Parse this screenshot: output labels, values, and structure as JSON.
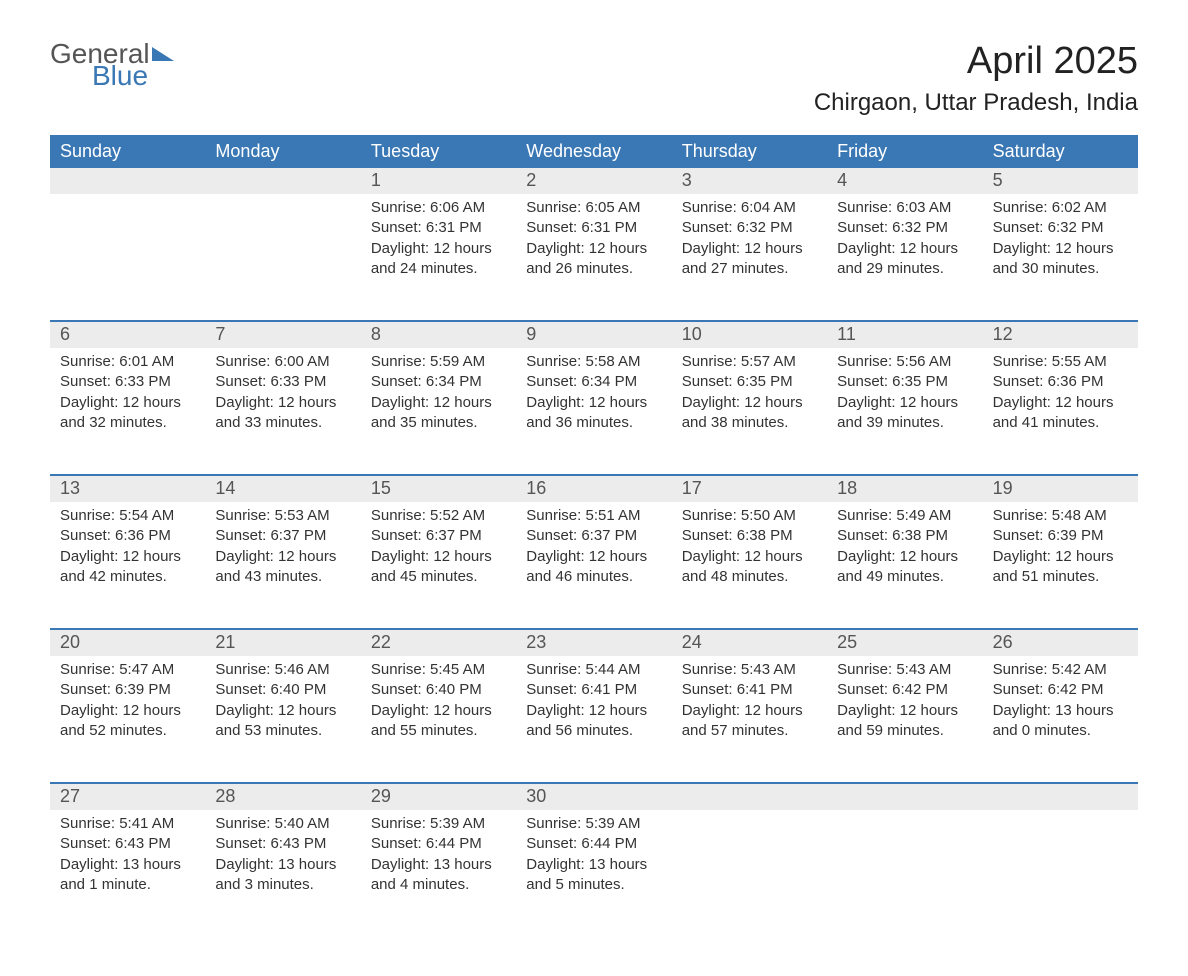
{
  "logo": {
    "word1": "General",
    "word2": "Blue"
  },
  "title": "April 2025",
  "subtitle": "Chirgaon, Uttar Pradesh, India",
  "colors": {
    "header_bg": "#3a78b5",
    "header_text": "#ffffff",
    "num_bg": "#ececec",
    "num_text": "#555555",
    "body_text": "#333333",
    "rule": "#3a78b5",
    "page_bg": "#ffffff"
  },
  "fontsizes": {
    "title": 38,
    "subtitle": 24,
    "dayhead": 18,
    "daynum": 18,
    "body": 15
  },
  "day_headers": [
    "Sunday",
    "Monday",
    "Tuesday",
    "Wednesday",
    "Thursday",
    "Friday",
    "Saturday"
  ],
  "weeks": [
    {
      "nums": [
        "",
        "",
        "1",
        "2",
        "3",
        "4",
        "5"
      ],
      "cells": [
        null,
        null,
        {
          "sunrise": "Sunrise: 6:06 AM",
          "sunset": "Sunset: 6:31 PM",
          "day1": "Daylight: 12 hours",
          "day2": "and 24 minutes."
        },
        {
          "sunrise": "Sunrise: 6:05 AM",
          "sunset": "Sunset: 6:31 PM",
          "day1": "Daylight: 12 hours",
          "day2": "and 26 minutes."
        },
        {
          "sunrise": "Sunrise: 6:04 AM",
          "sunset": "Sunset: 6:32 PM",
          "day1": "Daylight: 12 hours",
          "day2": "and 27 minutes."
        },
        {
          "sunrise": "Sunrise: 6:03 AM",
          "sunset": "Sunset: 6:32 PM",
          "day1": "Daylight: 12 hours",
          "day2": "and 29 minutes."
        },
        {
          "sunrise": "Sunrise: 6:02 AM",
          "sunset": "Sunset: 6:32 PM",
          "day1": "Daylight: 12 hours",
          "day2": "and 30 minutes."
        }
      ]
    },
    {
      "nums": [
        "6",
        "7",
        "8",
        "9",
        "10",
        "11",
        "12"
      ],
      "cells": [
        {
          "sunrise": "Sunrise: 6:01 AM",
          "sunset": "Sunset: 6:33 PM",
          "day1": "Daylight: 12 hours",
          "day2": "and 32 minutes."
        },
        {
          "sunrise": "Sunrise: 6:00 AM",
          "sunset": "Sunset: 6:33 PM",
          "day1": "Daylight: 12 hours",
          "day2": "and 33 minutes."
        },
        {
          "sunrise": "Sunrise: 5:59 AM",
          "sunset": "Sunset: 6:34 PM",
          "day1": "Daylight: 12 hours",
          "day2": "and 35 minutes."
        },
        {
          "sunrise": "Sunrise: 5:58 AM",
          "sunset": "Sunset: 6:34 PM",
          "day1": "Daylight: 12 hours",
          "day2": "and 36 minutes."
        },
        {
          "sunrise": "Sunrise: 5:57 AM",
          "sunset": "Sunset: 6:35 PM",
          "day1": "Daylight: 12 hours",
          "day2": "and 38 minutes."
        },
        {
          "sunrise": "Sunrise: 5:56 AM",
          "sunset": "Sunset: 6:35 PM",
          "day1": "Daylight: 12 hours",
          "day2": "and 39 minutes."
        },
        {
          "sunrise": "Sunrise: 5:55 AM",
          "sunset": "Sunset: 6:36 PM",
          "day1": "Daylight: 12 hours",
          "day2": "and 41 minutes."
        }
      ]
    },
    {
      "nums": [
        "13",
        "14",
        "15",
        "16",
        "17",
        "18",
        "19"
      ],
      "cells": [
        {
          "sunrise": "Sunrise: 5:54 AM",
          "sunset": "Sunset: 6:36 PM",
          "day1": "Daylight: 12 hours",
          "day2": "and 42 minutes."
        },
        {
          "sunrise": "Sunrise: 5:53 AM",
          "sunset": "Sunset: 6:37 PM",
          "day1": "Daylight: 12 hours",
          "day2": "and 43 minutes."
        },
        {
          "sunrise": "Sunrise: 5:52 AM",
          "sunset": "Sunset: 6:37 PM",
          "day1": "Daylight: 12 hours",
          "day2": "and 45 minutes."
        },
        {
          "sunrise": "Sunrise: 5:51 AM",
          "sunset": "Sunset: 6:37 PM",
          "day1": "Daylight: 12 hours",
          "day2": "and 46 minutes."
        },
        {
          "sunrise": "Sunrise: 5:50 AM",
          "sunset": "Sunset: 6:38 PM",
          "day1": "Daylight: 12 hours",
          "day2": "and 48 minutes."
        },
        {
          "sunrise": "Sunrise: 5:49 AM",
          "sunset": "Sunset: 6:38 PM",
          "day1": "Daylight: 12 hours",
          "day2": "and 49 minutes."
        },
        {
          "sunrise": "Sunrise: 5:48 AM",
          "sunset": "Sunset: 6:39 PM",
          "day1": "Daylight: 12 hours",
          "day2": "and 51 minutes."
        }
      ]
    },
    {
      "nums": [
        "20",
        "21",
        "22",
        "23",
        "24",
        "25",
        "26"
      ],
      "cells": [
        {
          "sunrise": "Sunrise: 5:47 AM",
          "sunset": "Sunset: 6:39 PM",
          "day1": "Daylight: 12 hours",
          "day2": "and 52 minutes."
        },
        {
          "sunrise": "Sunrise: 5:46 AM",
          "sunset": "Sunset: 6:40 PM",
          "day1": "Daylight: 12 hours",
          "day2": "and 53 minutes."
        },
        {
          "sunrise": "Sunrise: 5:45 AM",
          "sunset": "Sunset: 6:40 PM",
          "day1": "Daylight: 12 hours",
          "day2": "and 55 minutes."
        },
        {
          "sunrise": "Sunrise: 5:44 AM",
          "sunset": "Sunset: 6:41 PM",
          "day1": "Daylight: 12 hours",
          "day2": "and 56 minutes."
        },
        {
          "sunrise": "Sunrise: 5:43 AM",
          "sunset": "Sunset: 6:41 PM",
          "day1": "Daylight: 12 hours",
          "day2": "and 57 minutes."
        },
        {
          "sunrise": "Sunrise: 5:43 AM",
          "sunset": "Sunset: 6:42 PM",
          "day1": "Daylight: 12 hours",
          "day2": "and 59 minutes."
        },
        {
          "sunrise": "Sunrise: 5:42 AM",
          "sunset": "Sunset: 6:42 PM",
          "day1": "Daylight: 13 hours",
          "day2": "and 0 minutes."
        }
      ]
    },
    {
      "nums": [
        "27",
        "28",
        "29",
        "30",
        "",
        "",
        ""
      ],
      "cells": [
        {
          "sunrise": "Sunrise: 5:41 AM",
          "sunset": "Sunset: 6:43 PM",
          "day1": "Daylight: 13 hours",
          "day2": "and 1 minute."
        },
        {
          "sunrise": "Sunrise: 5:40 AM",
          "sunset": "Sunset: 6:43 PM",
          "day1": "Daylight: 13 hours",
          "day2": "and 3 minutes."
        },
        {
          "sunrise": "Sunrise: 5:39 AM",
          "sunset": "Sunset: 6:44 PM",
          "day1": "Daylight: 13 hours",
          "day2": "and 4 minutes."
        },
        {
          "sunrise": "Sunrise: 5:39 AM",
          "sunset": "Sunset: 6:44 PM",
          "day1": "Daylight: 13 hours",
          "day2": "and 5 minutes."
        },
        null,
        null,
        null
      ]
    }
  ]
}
